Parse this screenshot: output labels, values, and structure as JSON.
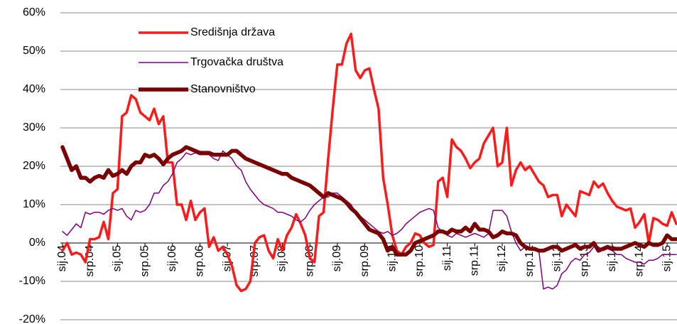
{
  "chart_data": {
    "type": "line",
    "categories": [
      "sij.04",
      null,
      null,
      null,
      null,
      null,
      "srp.04",
      null,
      null,
      null,
      null,
      null,
      "sij.05",
      null,
      null,
      null,
      null,
      null,
      "srp.05",
      null,
      null,
      null,
      null,
      null,
      "sij.06",
      null,
      null,
      null,
      null,
      null,
      "srp.06",
      null,
      null,
      null,
      null,
      null,
      "sij.07",
      null,
      null,
      null,
      null,
      null,
      "srp.07",
      null,
      null,
      null,
      null,
      null,
      "sij.08",
      null,
      null,
      null,
      null,
      null,
      "srp.08",
      null,
      null,
      null,
      null,
      null,
      "sij.09",
      null,
      null,
      null,
      null,
      null,
      "srp.09",
      null,
      null,
      null,
      null,
      null,
      "sij.10",
      null,
      null,
      null,
      null,
      null,
      "srp.10",
      null,
      null,
      null,
      null,
      null,
      "sij.11",
      null,
      null,
      null,
      null,
      null,
      "srp.11",
      null,
      null,
      null,
      null,
      null,
      "sij.12",
      null,
      null,
      null,
      null,
      null,
      "srp.12",
      null,
      null,
      null,
      null,
      null,
      "sij.13",
      null,
      null,
      null,
      null,
      null,
      "srp.13",
      null,
      null,
      null,
      null,
      null,
      "sij.14",
      null,
      null,
      null,
      null,
      null,
      "srp.14",
      null,
      null,
      null,
      null,
      null,
      "sij.15",
      null,
      null
    ],
    "series": [
      {
        "name": "Središnja država",
        "color": "#ff1a1a",
        "width": 3.5,
        "values": [
          -2,
          0,
          -3,
          -2.5,
          -3,
          -5,
          1,
          1,
          1.5,
          5.5,
          1,
          13,
          14,
          33,
          34,
          38.5,
          37.5,
          34,
          33,
          32,
          35,
          31,
          33,
          21,
          21,
          10,
          10,
          6,
          11,
          6,
          8,
          9,
          -1,
          1.5,
          -2,
          -1,
          -3,
          -6,
          -11,
          -12.5,
          -12,
          -10,
          0,
          1.5,
          2,
          -2,
          -4,
          1,
          -2,
          2,
          4,
          7.5,
          5,
          2,
          -4,
          -5,
          7,
          8,
          22,
          35,
          46.5,
          46.5,
          52,
          54.5,
          45,
          43,
          45,
          45.5,
          40,
          35,
          17,
          10,
          2,
          -2,
          -3,
          -1,
          0,
          2.5,
          2,
          0,
          -1,
          -0.5,
          16,
          17,
          12,
          27,
          25,
          24,
          22,
          19.5,
          21,
          22,
          26,
          28,
          30,
          20,
          21,
          30,
          15,
          19,
          21,
          19,
          20,
          18,
          16,
          15,
          12,
          12.5,
          12.5,
          7,
          10,
          8.5,
          7,
          13.5,
          13,
          12.5,
          16,
          14.5,
          15.5,
          13,
          11,
          9.5,
          9,
          8.5,
          9,
          4,
          5.5,
          7.5,
          0,
          6.5,
          6,
          5,
          4.5,
          8,
          5
        ]
      },
      {
        "name": "Trgovačka društva",
        "color": "#800080",
        "width": 1.5,
        "values": [
          3,
          2,
          3.5,
          5,
          4,
          8,
          7.5,
          8,
          8,
          7.5,
          8.5,
          9,
          8.5,
          9,
          7,
          6,
          8.5,
          8,
          8.5,
          10,
          13,
          13,
          15,
          16,
          18,
          21,
          22,
          23.5,
          23,
          23.5,
          23,
          23,
          23,
          22,
          21.5,
          24,
          23,
          22,
          20,
          19,
          16,
          14,
          12.5,
          11,
          10,
          9.5,
          9,
          8,
          8,
          7.5,
          7,
          6,
          5.5,
          6.5,
          8.5,
          10,
          11,
          12,
          12,
          13,
          13,
          12,
          11,
          10,
          8,
          7,
          6,
          5,
          4,
          3,
          2.5,
          3,
          2,
          2.5,
          3.5,
          5,
          6,
          7,
          8,
          8.5,
          9,
          8.5,
          4,
          3,
          2,
          1.5,
          2.5,
          2,
          1.5,
          2,
          2.5,
          2,
          1.5,
          2.5,
          8.5,
          8.5,
          8.5,
          7,
          3,
          0,
          -2,
          -1,
          -1.5,
          -2,
          -2,
          -12,
          -11.5,
          -12,
          -11,
          -8,
          -7,
          -5,
          -4,
          -4.5,
          -3,
          -2.5,
          -1,
          -1,
          -2,
          -1.5,
          -2,
          -3,
          -3,
          -4,
          -4.5,
          -5,
          -5,
          -5.5,
          -4.5,
          -4.5,
          -4,
          -3,
          -3,
          -3,
          -3
        ]
      },
      {
        "name": "Stanovništvo",
        "color": "#7a0000",
        "width": 5.5,
        "values": [
          25,
          22,
          19,
          20,
          17,
          17,
          16,
          17,
          17.5,
          17,
          19,
          17.5,
          18,
          19,
          18,
          20,
          21,
          21,
          23,
          22.5,
          23,
          22,
          20.5,
          22,
          23,
          23.5,
          24,
          25,
          24.5,
          24,
          23.5,
          23.5,
          23.5,
          23,
          23,
          23,
          23,
          24,
          24,
          23,
          22,
          21.5,
          21,
          20.5,
          20,
          19.5,
          19,
          18.5,
          18,
          18,
          17,
          16.5,
          16,
          15.5,
          15,
          14,
          13,
          12,
          13,
          12.5,
          12,
          11.5,
          10.5,
          9,
          8,
          6.5,
          5,
          3.5,
          3,
          2.5,
          1,
          -2,
          -1,
          -3,
          -3,
          -3,
          -2,
          0,
          0.5,
          1,
          1.5,
          2,
          3,
          3,
          2.5,
          3.5,
          3,
          3,
          4,
          3,
          5,
          3.5,
          3.5,
          3,
          1.5,
          2,
          3,
          2.5,
          2.5,
          2,
          0,
          -1,
          -1.5,
          -1.5,
          -2,
          -2,
          -1.5,
          -1,
          -1,
          -2,
          -1.5,
          -1,
          -0.5,
          -1.5,
          -1,
          -1,
          0,
          -2,
          -1.5,
          -1,
          -1.5,
          -1.5,
          -1.5,
          -1,
          -0.5,
          0,
          -0.5,
          -1,
          0,
          -0.5,
          -0.5,
          0,
          2,
          1,
          1
        ]
      }
    ],
    "ylim": [
      -20,
      60
    ],
    "yticks": [
      {
        "value": -20,
        "label": "-20%"
      },
      {
        "value": -10,
        "label": "-10%"
      },
      {
        "value": 0,
        "label": "0%"
      },
      {
        "value": 10,
        "label": "10%"
      },
      {
        "value": 20,
        "label": "20%"
      },
      {
        "value": 30,
        "label": "30%"
      },
      {
        "value": 40,
        "label": "40%"
      },
      {
        "value": 50,
        "label": "50%"
      },
      {
        "value": 60,
        "label": "60%"
      }
    ],
    "grid": true,
    "legend": "upper left"
  }
}
